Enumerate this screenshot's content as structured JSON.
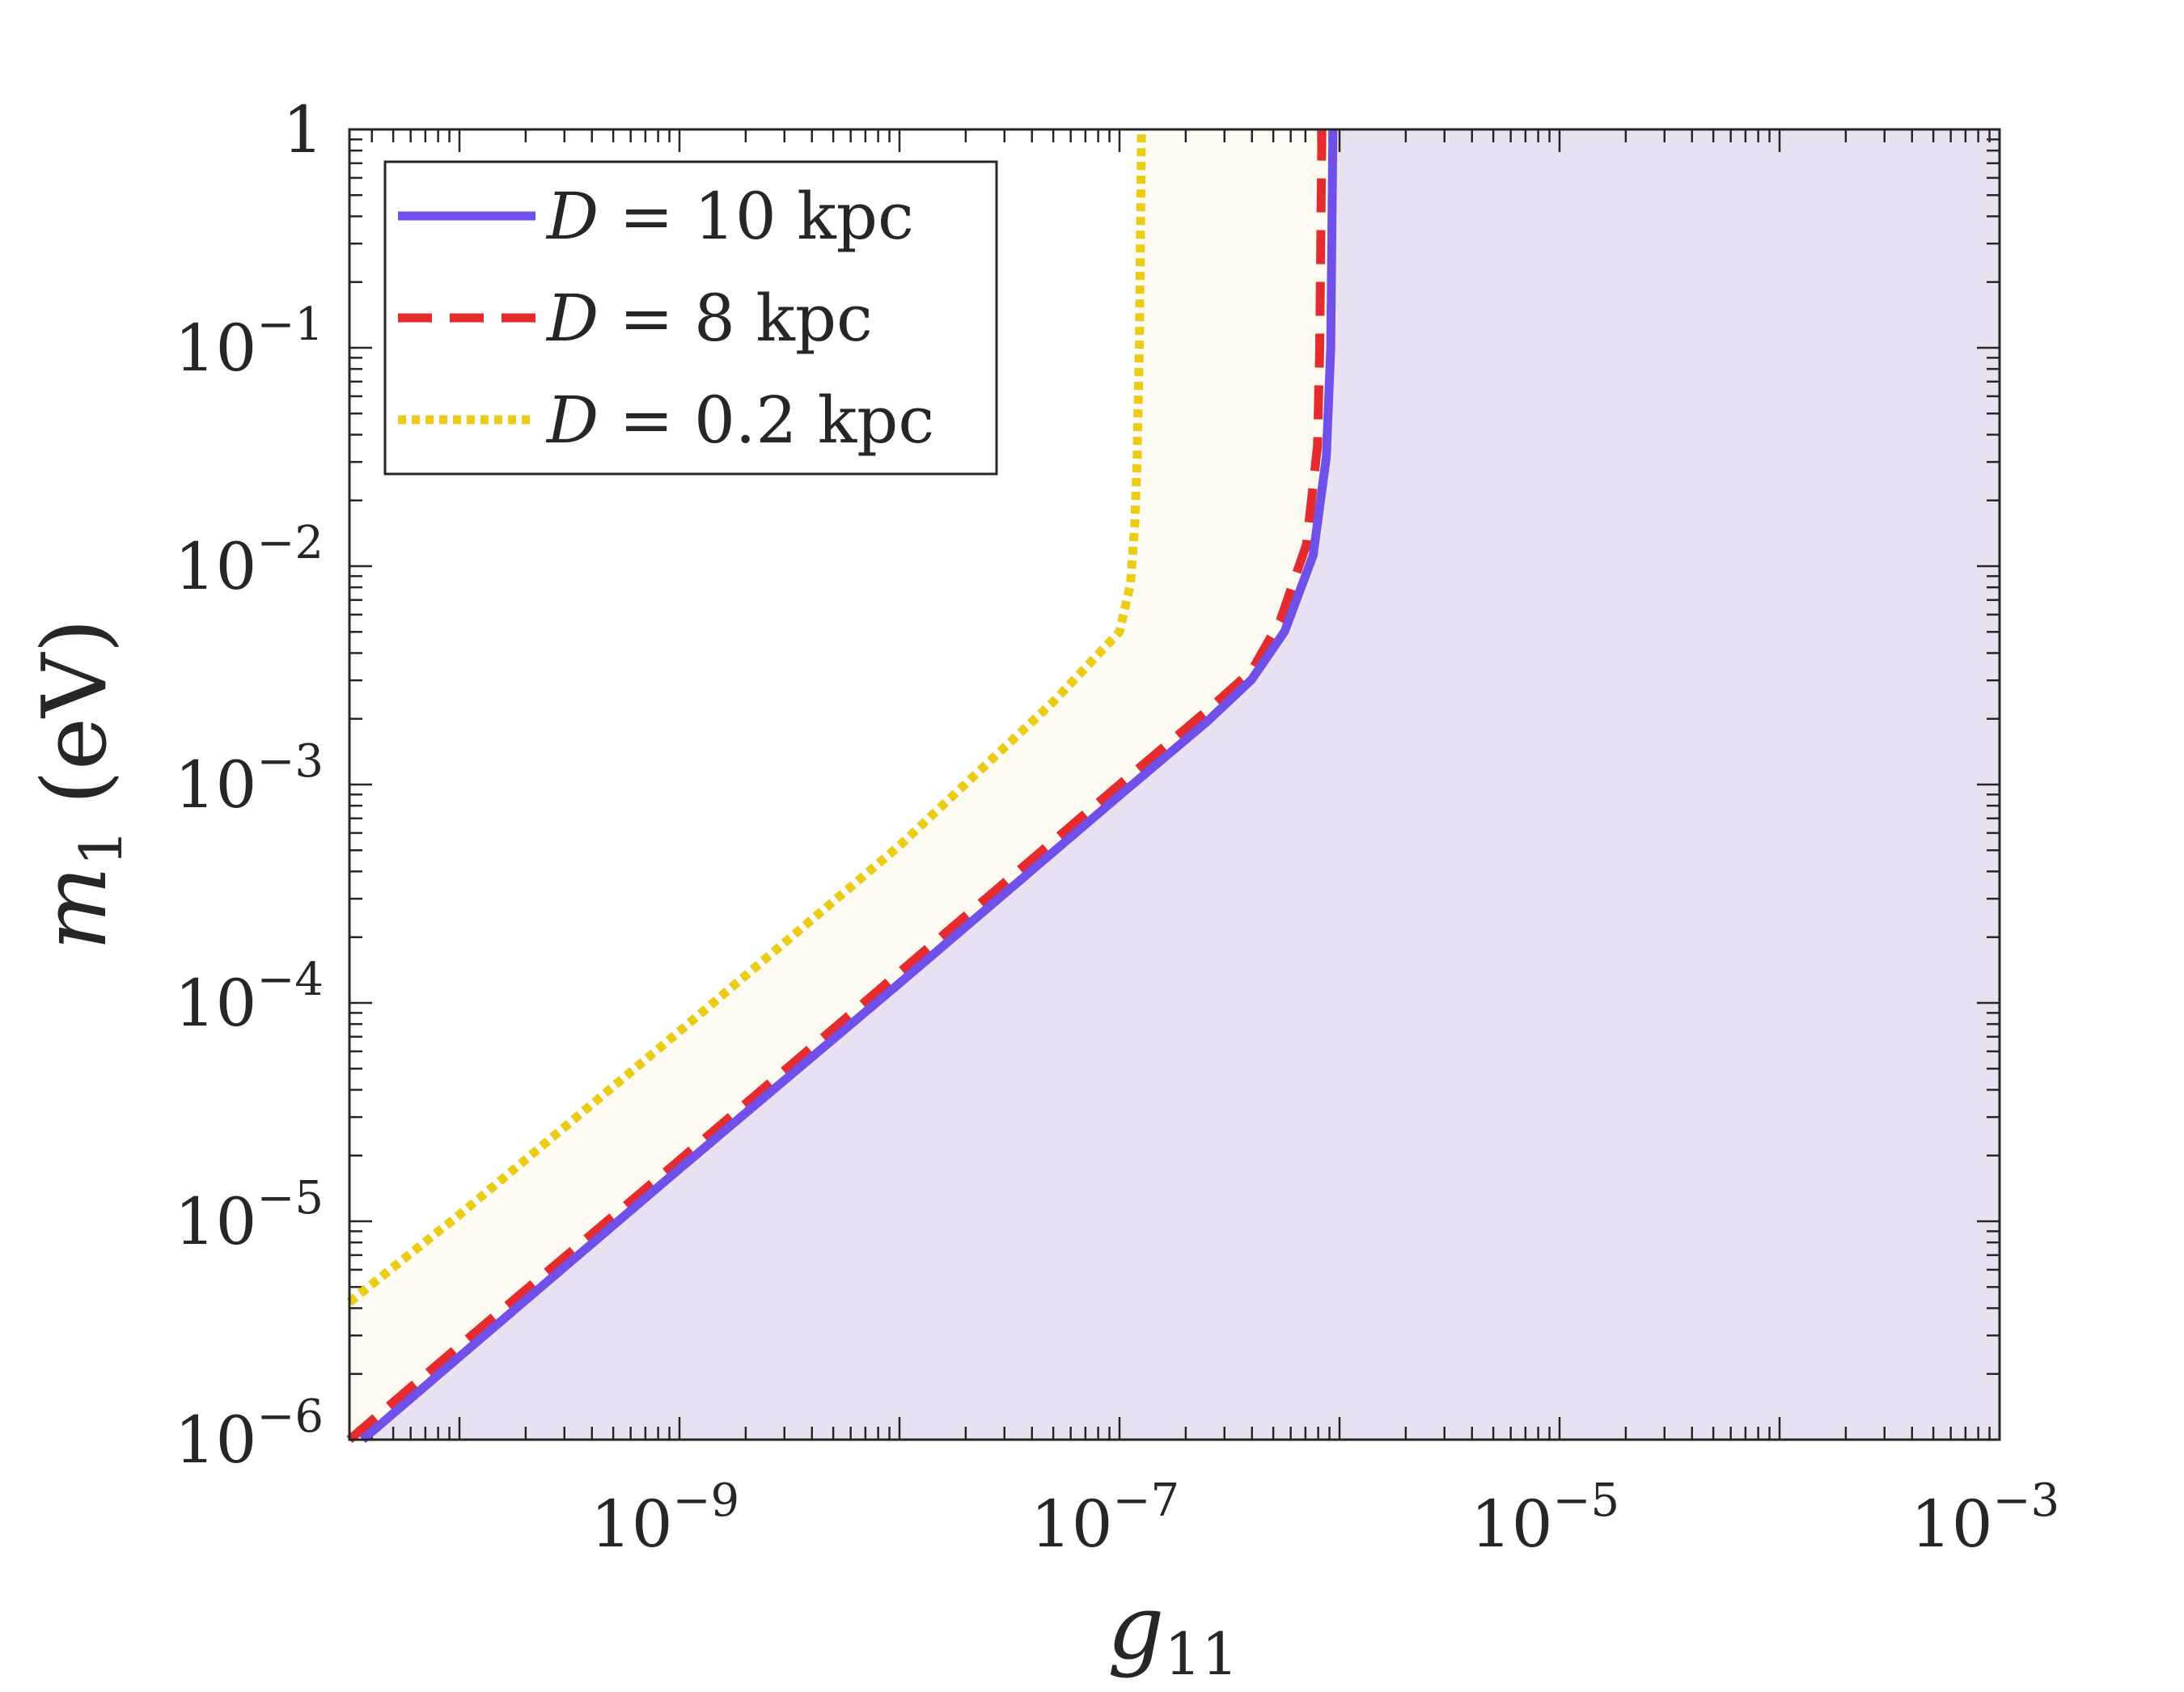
{
  "chart_data": {
    "type": "line",
    "title": "",
    "xlabel": "g",
    "xlabel_sub": "11",
    "ylabel": "m",
    "ylabel_sub": "1",
    "ylabel_unit": "(eV)",
    "xscale": "log",
    "yscale": "log",
    "xlim_log10": [
      -10.5,
      -3
    ],
    "ylim_log10": [
      -6,
      0
    ],
    "x_ticks": [
      {
        "base": "10",
        "exp": "−9",
        "log10": -9
      },
      {
        "base": "10",
        "exp": "−7",
        "log10": -7
      },
      {
        "base": "10",
        "exp": "−5",
        "log10": -5
      },
      {
        "base": "10",
        "exp": "−3",
        "log10": -3
      }
    ],
    "y_ticks": [
      {
        "base": "10",
        "exp": "−6",
        "log10": -6
      },
      {
        "base": "10",
        "exp": "−5",
        "log10": -5
      },
      {
        "base": "10",
        "exp": "−4",
        "log10": -4
      },
      {
        "base": "10",
        "exp": "−3",
        "log10": -3
      },
      {
        "base": "10",
        "exp": "−2",
        "log10": -2
      },
      {
        "base": "10",
        "exp": "−1",
        "log10": -1
      },
      {
        "base": "1",
        "exp": "",
        "log10": 0
      }
    ],
    "legend_position": "top-left",
    "series": [
      {
        "name_var": "D",
        "name_rest": " = 10 kpc",
        "style": "solid",
        "color": "#7150ea",
        "fill_right": "#e9e0f1",
        "points_log10": [
          [
            -10.44,
            -6
          ],
          [
            -10,
            -5.62
          ],
          [
            -9,
            -4.76
          ],
          [
            -8,
            -3.91
          ],
          [
            -7,
            -3.05
          ],
          [
            -6.6,
            -2.71
          ],
          [
            -6.4,
            -2.52
          ],
          [
            -6.25,
            -2.3
          ],
          [
            -6.12,
            -1.95
          ],
          [
            -6.06,
            -1.5
          ],
          [
            -6.04,
            -1
          ],
          [
            -6.03,
            0
          ]
        ]
      },
      {
        "name_var": "D",
        "name_rest": " = 8 kpc",
        "style": "dashed",
        "color": "#e52b2d",
        "points_log10": [
          [
            -10.5,
            -6
          ],
          [
            -10,
            -5.57
          ],
          [
            -9,
            -4.72
          ],
          [
            -8,
            -3.86
          ],
          [
            -7,
            -3.0
          ],
          [
            -6.6,
            -2.66
          ],
          [
            -6.4,
            -2.48
          ],
          [
            -6.27,
            -2.25
          ],
          [
            -6.15,
            -1.9
          ],
          [
            -6.1,
            -1.45
          ],
          [
            -6.09,
            -1
          ],
          [
            -6.08,
            0
          ]
        ]
      },
      {
        "name_var": "D",
        "name_rest": " = 0.2 kpc",
        "style": "dotted",
        "color": "#eccb14",
        "fill_right": "#fcfaf1",
        "points_log10": [
          [
            -10.5,
            -5.37
          ],
          [
            -10,
            -4.97
          ],
          [
            -9,
            -4.13
          ],
          [
            -8,
            -3.28
          ],
          [
            -7.3,
            -2.62
          ],
          [
            -7,
            -2.3
          ],
          [
            -6.95,
            -2.08
          ],
          [
            -6.93,
            -1.8
          ],
          [
            -6.92,
            -1.5
          ],
          [
            -6.91,
            -1
          ],
          [
            -6.9,
            0
          ]
        ]
      }
    ]
  }
}
